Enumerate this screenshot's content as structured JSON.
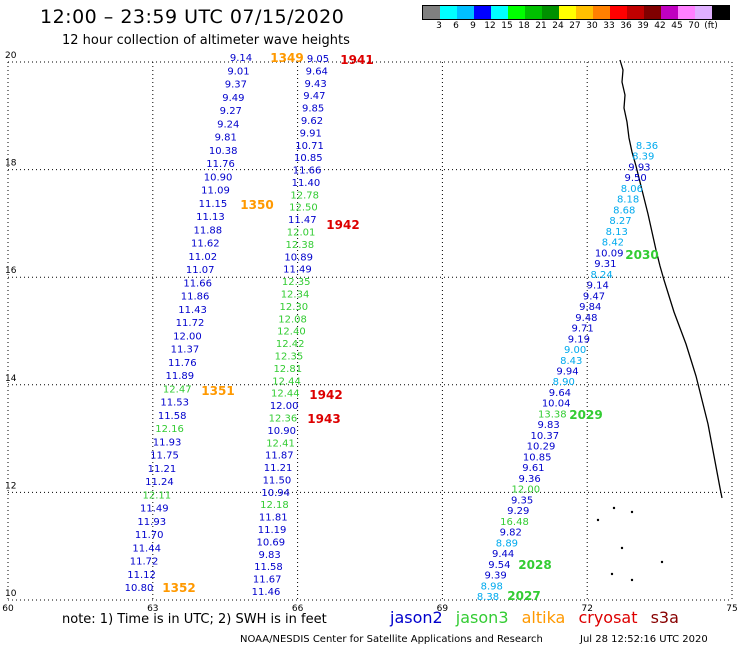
{
  "header": {
    "title": "12:00 – 23:59 UTC 07/15/2020",
    "subtitle": "12 hour collection of altimeter wave heights"
  },
  "scale": {
    "colors": [
      "#808080",
      "#00ffff",
      "#00bfff",
      "#0000ff",
      "#00ffff",
      "#00ff00",
      "#00c000",
      "#009000",
      "#ffff00",
      "#ffc000",
      "#ff8000",
      "#ff0000",
      "#c00000",
      "#800000",
      "#c000c0",
      "#ff80ff",
      "#e0b0ff",
      "#000000"
    ],
    "labels": [
      "3",
      "6",
      "9",
      "12",
      "15",
      "18",
      "21",
      "24",
      "27",
      "30",
      "33",
      "36",
      "39",
      "42",
      "45",
      "70",
      "(ft)"
    ]
  },
  "satellite_colors": {
    "jason2": "#0000cc",
    "jason3": "#33cc33",
    "altika": "#ff9900",
    "cryosat": "#dd0000",
    "s3a": "#880000",
    "j2_alt": "#00aaee"
  },
  "axes": {
    "lat_labels": [
      "20",
      "18",
      "16",
      "14",
      "12",
      "10"
    ],
    "lat_values": [
      20,
      18,
      16,
      14,
      12,
      10
    ],
    "lon_labels": [
      "60",
      "63",
      "66",
      "69",
      "72",
      "75"
    ],
    "lon_values": [
      60,
      63,
      66,
      69,
      72,
      75
    ]
  },
  "track_a": {
    "values": [
      "9.14",
      "9.01",
      "9.37",
      "9.49",
      "9.27",
      "9.24",
      "9.81",
      "10.38",
      "11.76",
      "10.90",
      "11.09",
      "11.15",
      "11.13",
      "11.88",
      "11.62",
      "11.02",
      "11.07",
      "11.66",
      "11.86",
      "11.43",
      "11.72",
      "12.00",
      "11.37",
      "11.76",
      "11.89",
      "12.47",
      "11.53",
      "11.58",
      "12.16",
      "11.93",
      "11.75",
      "11.21",
      "11.24",
      "12.11",
      "11.49",
      "11.93",
      "11.70",
      "11.44",
      "11.72",
      "11.12",
      "10.80"
    ],
    "colors": [
      "jason2",
      "jason2",
      "jason2",
      "jason2",
      "jason2",
      "jason2",
      "jason2",
      "jason2",
      "jason2",
      "jason2",
      "jason2",
      "jason2",
      "jason2",
      "jason2",
      "jason2",
      "jason2",
      "jason2",
      "jason2",
      "jason2",
      "jason2",
      "jason2",
      "jason2",
      "jason2",
      "jason2",
      "jason2",
      "jason3",
      "jason2",
      "jason2",
      "jason3",
      "jason2",
      "jason2",
      "jason2",
      "jason2",
      "jason3",
      "jason2",
      "jason2",
      "jason2",
      "jason2",
      "jason2",
      "jason2",
      "jason2"
    ]
  },
  "track_b": {
    "values": [
      "9.05",
      "9.64",
      "9.43",
      "9.47",
      "9.85",
      "9.62",
      "9.91",
      "10.71",
      "10.85",
      "11.66",
      "11.40",
      "12.78",
      "12.50",
      "11.47",
      "12.01",
      "12.38",
      "10.89",
      "11.49",
      "12.35",
      "12.34",
      "12.30",
      "12.08",
      "12.40",
      "12.42",
      "12.35",
      "12.81",
      "12.44",
      "12.44",
      "12.00",
      "12.36",
      "10.90",
      "12.41",
      "11.87",
      "11.21",
      "11.50",
      "10.94",
      "12.18",
      "11.81",
      "11.19",
      "10.69",
      "9.83",
      "11.58",
      "11.67",
      "11.46"
    ],
    "colors": [
      "jason2",
      "jason2",
      "jason2",
      "jason2",
      "jason2",
      "jason2",
      "jason2",
      "jason2",
      "jason2",
      "jason2",
      "jason2",
      "jason3",
      "jason3",
      "jason2",
      "jason3",
      "jason3",
      "jason2",
      "jason2",
      "jason3",
      "jason3",
      "jason3",
      "jason3",
      "jason3",
      "jason3",
      "jason3",
      "jason3",
      "jason3",
      "jason3",
      "jason2",
      "jason3",
      "jason2",
      "jason3",
      "jason2",
      "jason2",
      "jason2",
      "jason2",
      "jason3",
      "jason2",
      "jason2",
      "jason2",
      "jason2",
      "jason2",
      "jason2",
      "jason2"
    ]
  },
  "track_c": {
    "values": [
      "8.36",
      "8.39",
      "9.93",
      "9.50",
      "8.06",
      "8.18",
      "8.68",
      "8.27",
      "8.13",
      "8.42",
      "10.09",
      "9.31",
      "8.24",
      "9.14",
      "9.47",
      "9.84",
      "9.48",
      "9.71",
      "9.19",
      "9.00",
      "8.43",
      "9.94",
      "8.90",
      "9.64",
      "10.04",
      "13.38",
      "9.83",
      "10.37",
      "10.29",
      "10.85",
      "9.61",
      "9.36",
      "12.00",
      "9.35",
      "9.29",
      "16.48",
      "9.82",
      "8.89",
      "9.44",
      "9.54",
      "9.39",
      "8.98",
      "8.38"
    ],
    "colors": [
      "j2_alt",
      "j2_alt",
      "jason2",
      "jason2",
      "j2_alt",
      "j2_alt",
      "j2_alt",
      "j2_alt",
      "j2_alt",
      "j2_alt",
      "jason2",
      "jason2",
      "j2_alt",
      "jason2",
      "jason2",
      "jason2",
      "jason2",
      "jason2",
      "jason2",
      "j2_alt",
      "j2_alt",
      "jason2",
      "j2_alt",
      "jason2",
      "jason2",
      "jason3",
      "jason2",
      "jason2",
      "jason2",
      "jason2",
      "jason2",
      "jason2",
      "jason3",
      "jason2",
      "jason2",
      "jason3",
      "jason2",
      "j2_alt",
      "jason2",
      "jason2",
      "jason2",
      "j2_alt",
      "j2_alt"
    ]
  },
  "pass_times": {
    "t1349": "1349",
    "t1941": "1941",
    "t1350": "1350",
    "t1942a": "1942",
    "t1351": "1351",
    "t1942b": "1942",
    "t1943": "1943",
    "t1352": "1352",
    "t2030": "2030",
    "t2029": "2029",
    "t2028": "2028",
    "t2027": "2027"
  },
  "footer": {
    "note": "note:  1) Time is in UTC;  2) SWH is in feet",
    "sat_jason2": "jason2",
    "sat_jason3": "jason3",
    "sat_altika": "altika",
    "sat_cryosat": "cryosat",
    "sat_s3a": "s3a",
    "credit": "NOAA/NESDIS Center for Satellite Applications and Research",
    "timestamp": "Jul 28 12:52:16 UTC 2020"
  }
}
